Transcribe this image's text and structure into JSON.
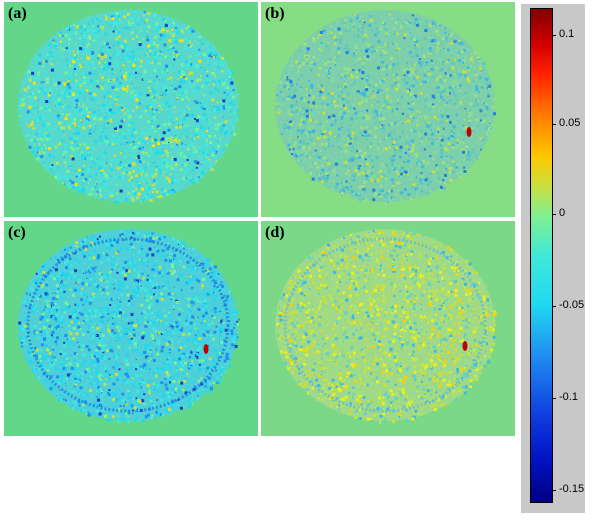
{
  "panels": [
    {
      "id": "a",
      "label": "(a)",
      "bg": "#63d68a",
      "disk": "#58d8cc"
    },
    {
      "id": "b",
      "label": "(b)",
      "bg": "#86dd86",
      "disk": "#7ccfaa"
    },
    {
      "id": "c",
      "label": "(c)",
      "bg": "#62d78a",
      "disk": "#4fcfd7"
    },
    {
      "id": "d",
      "label": "(d)",
      "bg": "#7ad886",
      "disk": "#9fd98a"
    }
  ],
  "colorbar": {
    "ticks": [
      {
        "value": 0.1,
        "label": "0.1"
      },
      {
        "value": 0.05,
        "label": "0.05"
      },
      {
        "value": 0,
        "label": "0"
      },
      {
        "value": -0.05,
        "label": "-0.05"
      },
      {
        "value": -0.1,
        "label": "-0.1"
      },
      {
        "value": -0.15,
        "label": "-0.15"
      }
    ],
    "range": [
      -0.155,
      0.112
    ],
    "colormap": "jet"
  }
}
